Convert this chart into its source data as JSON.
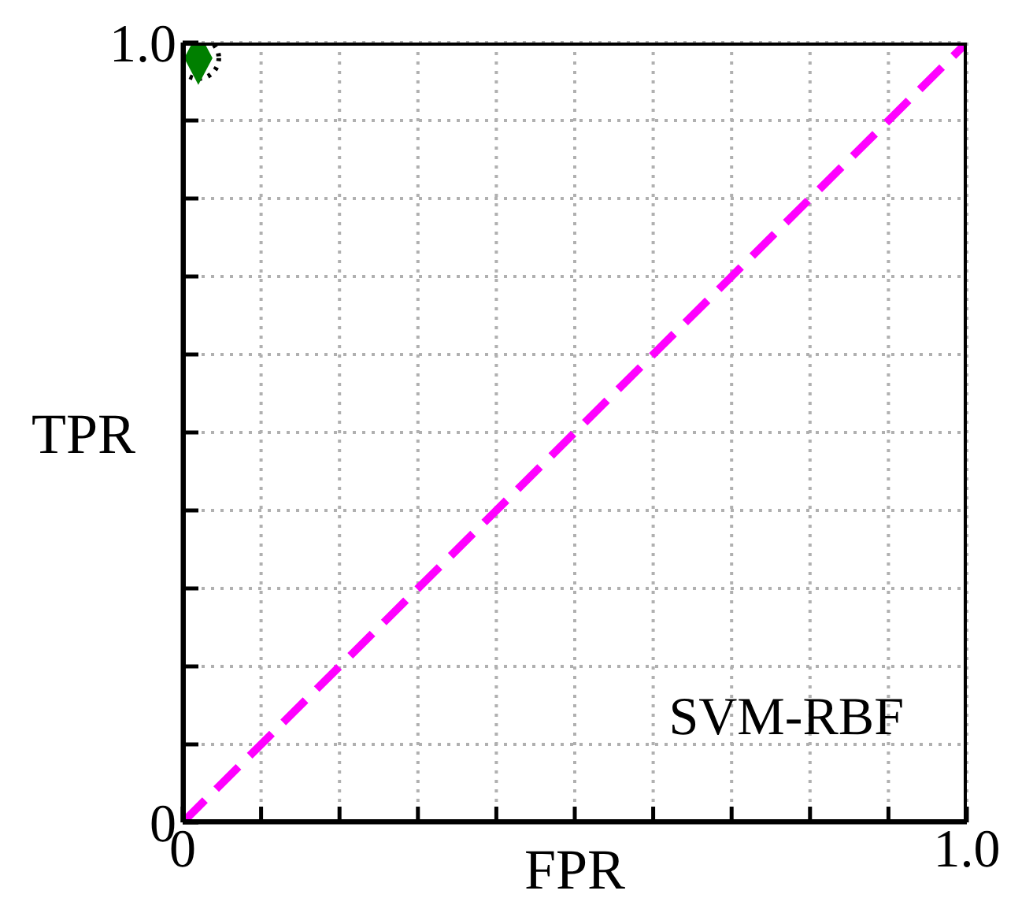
{
  "chart_data": {
    "type": "scatter",
    "xlabel": "FPR",
    "ylabel": "TPR",
    "xlim": [
      0,
      1
    ],
    "ylim": [
      0,
      1
    ],
    "xticks": [
      0,
      {
        "value": 0.1,
        "label": null
      },
      {
        "value": 0.2,
        "label": null
      },
      {
        "value": 0.3,
        "label": null
      },
      {
        "value": 0.4,
        "label": null
      },
      {
        "value": 0.5,
        "label": null
      },
      {
        "value": 0.6,
        "label": null
      },
      {
        "value": 0.7,
        "label": null
      },
      {
        "value": 0.8,
        "label": null
      },
      {
        "value": 0.9,
        "label": null
      },
      {
        "value": 1,
        "label": "1.0"
      }
    ],
    "yticks": [
      0,
      {
        "value": 0.1,
        "label": null
      },
      {
        "value": 0.2,
        "label": null
      },
      {
        "value": 0.3,
        "label": null
      },
      {
        "value": 0.4,
        "label": null
      },
      {
        "value": 0.5,
        "label": null
      },
      {
        "value": 0.6,
        "label": null
      },
      {
        "value": 0.7,
        "label": null
      },
      {
        "value": 0.8,
        "label": null
      },
      {
        "value": 0.9,
        "label": null
      },
      {
        "value": 1,
        "label": "1.0"
      }
    ],
    "grid": true,
    "series": [
      {
        "type": "line",
        "color": "#ff00ff",
        "x": [
          0,
          1
        ],
        "values": [
          0,
          1
        ],
        "line_style": "dashed",
        "marker": "none"
      },
      {
        "color": "#007f00",
        "x": [
          0.02
        ],
        "values": [
          0.98
        ],
        "marker": "diamond"
      }
    ],
    "annotations": [
      "SVM-RBF"
    ]
  }
}
